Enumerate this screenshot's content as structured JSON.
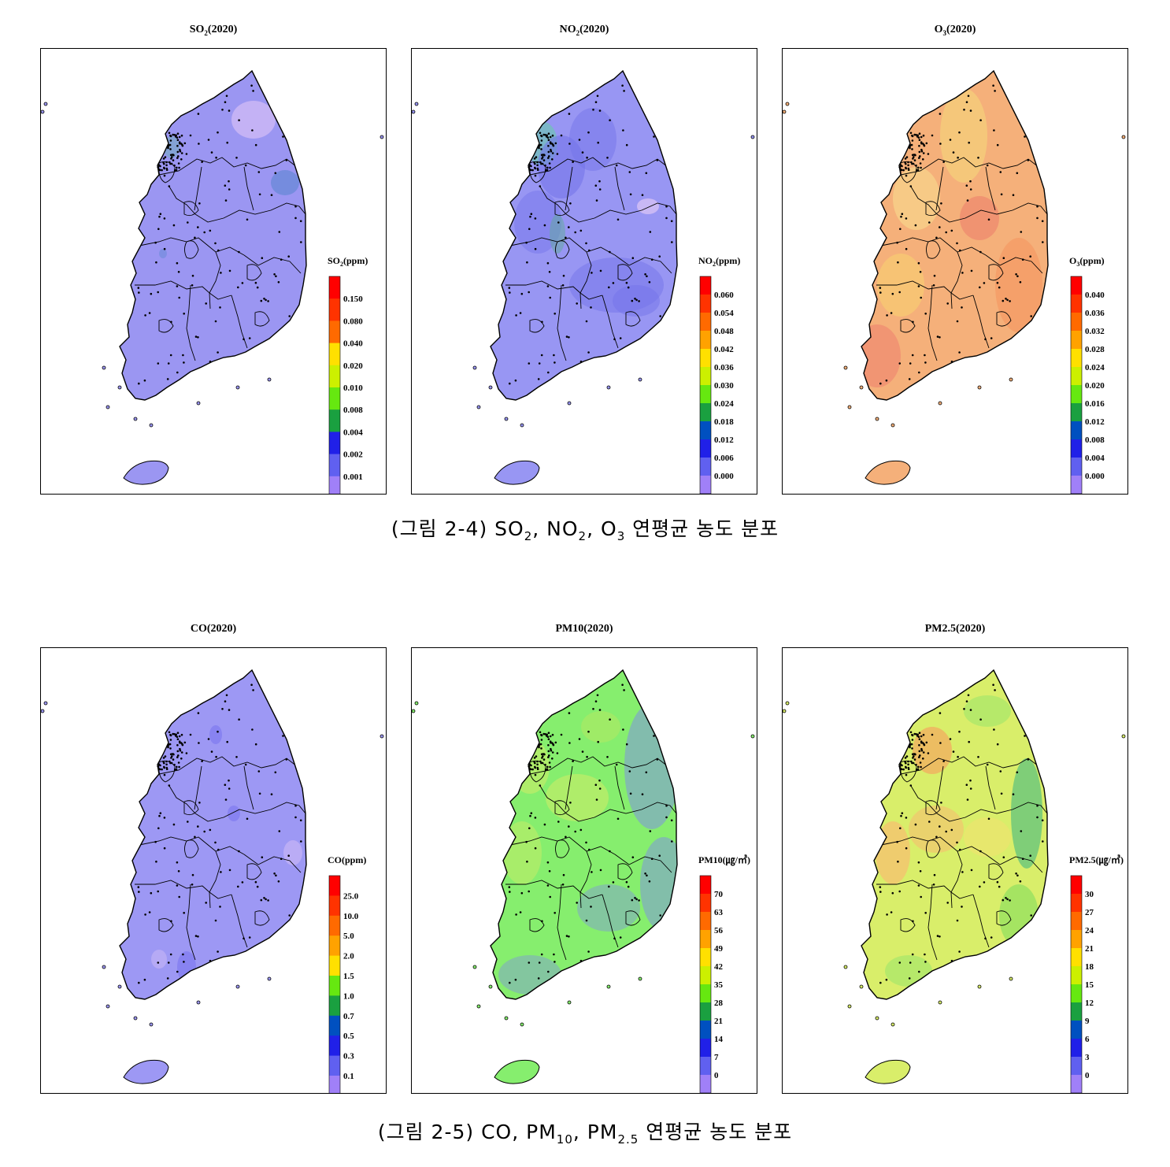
{
  "figures": [
    {
      "caption": {
        "prefix": "(그림 2-4) ",
        "parts": [
          [
            "SO",
            "2"
          ],
          [
            "NO",
            "2"
          ],
          [
            "O",
            "3"
          ]
        ],
        "suffix": " 연평균 농도 분포"
      },
      "panels": [
        {
          "title_main": "SO",
          "title_sub": "2",
          "title_rest": "(2020)",
          "legend_title": "SO2(ppm)",
          "legend_main": "SO",
          "legend_sub": "2",
          "legend_rest": "(ppm)",
          "ticks": [
            "0.150",
            "0.080",
            "0.040",
            "0.020",
            "0.010",
            "0.008",
            "0.004",
            "0.002",
            "0.001"
          ],
          "base_color": "#9b96f2"
        },
        {
          "title_main": "NO",
          "title_sub": "2",
          "title_rest": "(2020)",
          "legend_title": "NO2(ppm)",
          "legend_main": "NO",
          "legend_sub": "2",
          "legend_rest": "(ppm)",
          "ticks": [
            "0.060",
            "0.054",
            "0.048",
            "0.042",
            "0.036",
            "0.030",
            "0.024",
            "0.018",
            "0.012",
            "0.006",
            "0.000"
          ],
          "base_color": "#9896f3"
        },
        {
          "title_main": "O",
          "title_sub": "3",
          "title_rest": "(2020)",
          "legend_title": "O3(ppm)",
          "legend_main": "O",
          "legend_sub": "3",
          "legend_rest": "(ppm)",
          "ticks": [
            "0.040",
            "0.036",
            "0.032",
            "0.028",
            "0.024",
            "0.020",
            "0.016",
            "0.012",
            "0.008",
            "0.004",
            "0.000"
          ],
          "base_color": "#f5b07a"
        }
      ]
    },
    {
      "caption": {
        "prefix": "(그림 2-5) ",
        "parts": [
          [
            "CO",
            ""
          ],
          [
            "PM",
            "10"
          ],
          [
            "PM",
            "2.5"
          ]
        ],
        "suffix": " 연평균 농도 분포"
      },
      "panels": [
        {
          "title_main": "CO(2020)",
          "title_sub": "",
          "title_rest": "",
          "legend_title": "CO(ppm)",
          "legend_main": "CO(ppm)",
          "legend_sub": "",
          "legend_rest": "",
          "ticks": [
            "25.0",
            "10.0",
            "5.0",
            "2.0",
            "1.5",
            "1.0",
            "0.7",
            "0.5",
            "0.3",
            "0.1"
          ],
          "base_color": "#9d98f4"
        },
        {
          "title_main": "PM10(2020)",
          "title_sub": "",
          "title_rest": "",
          "legend_title": "PM10(μg/m³)",
          "legend_main": "PM10(㎍/㎥)",
          "legend_sub": "",
          "legend_rest": "",
          "ticks": [
            "70",
            "63",
            "56",
            "49",
            "42",
            "35",
            "28",
            "21",
            "14",
            "7",
            "0"
          ],
          "base_color": "#86ee6e"
        },
        {
          "title_main": "PM2.5(2020)",
          "title_sub": "",
          "title_rest": "",
          "legend_title": "PM2.5(μg/m³)",
          "legend_main": "PM2.5(㎍/㎥)",
          "legend_sub": "",
          "legend_rest": "",
          "ticks": [
            "30",
            "27",
            "24",
            "21",
            "18",
            "15",
            "12",
            "9",
            "6",
            "3",
            "0"
          ],
          "base_color": "#d9ee6a"
        }
      ]
    }
  ],
  "colorbar": [
    "#ff0000",
    "#ff3300",
    "#ff6a00",
    "#ffa200",
    "#ffe000",
    "#ccf000",
    "#66e810",
    "#1aa040",
    "#0050c0",
    "#2020e8",
    "#6060f0",
    "#a080f8"
  ],
  "chart_data": [
    {
      "type": "heatmap",
      "title": "SO2(2020)",
      "legend": "SO2(ppm)",
      "legend_levels": [
        0.15,
        0.08,
        0.04,
        0.02,
        0.01,
        0.008,
        0.004,
        0.002,
        0.001
      ]
    },
    {
      "type": "heatmap",
      "title": "NO2(2020)",
      "legend": "NO2(ppm)",
      "legend_levels": [
        0.06,
        0.054,
        0.048,
        0.042,
        0.036,
        0.03,
        0.024,
        0.018,
        0.012,
        0.006,
        0.0
      ]
    },
    {
      "type": "heatmap",
      "title": "O3(2020)",
      "legend": "O3(ppm)",
      "legend_levels": [
        0.04,
        0.036,
        0.032,
        0.028,
        0.024,
        0.02,
        0.016,
        0.012,
        0.008,
        0.004,
        0.0
      ]
    },
    {
      "type": "heatmap",
      "title": "CO(2020)",
      "legend": "CO(ppm)",
      "legend_levels": [
        25.0,
        10.0,
        5.0,
        2.0,
        1.5,
        1.0,
        0.7,
        0.5,
        0.3,
        0.1
      ]
    },
    {
      "type": "heatmap",
      "title": "PM10(2020)",
      "legend": "PM10(μg/m³)",
      "legend_levels": [
        70,
        63,
        56,
        49,
        42,
        35,
        28,
        21,
        14,
        7,
        0
      ]
    },
    {
      "type": "heatmap",
      "title": "PM2.5(2020)",
      "legend": "PM2.5(μg/m³)",
      "legend_levels": [
        30,
        27,
        24,
        21,
        18,
        15,
        12,
        9,
        6,
        3,
        0
      ]
    }
  ]
}
